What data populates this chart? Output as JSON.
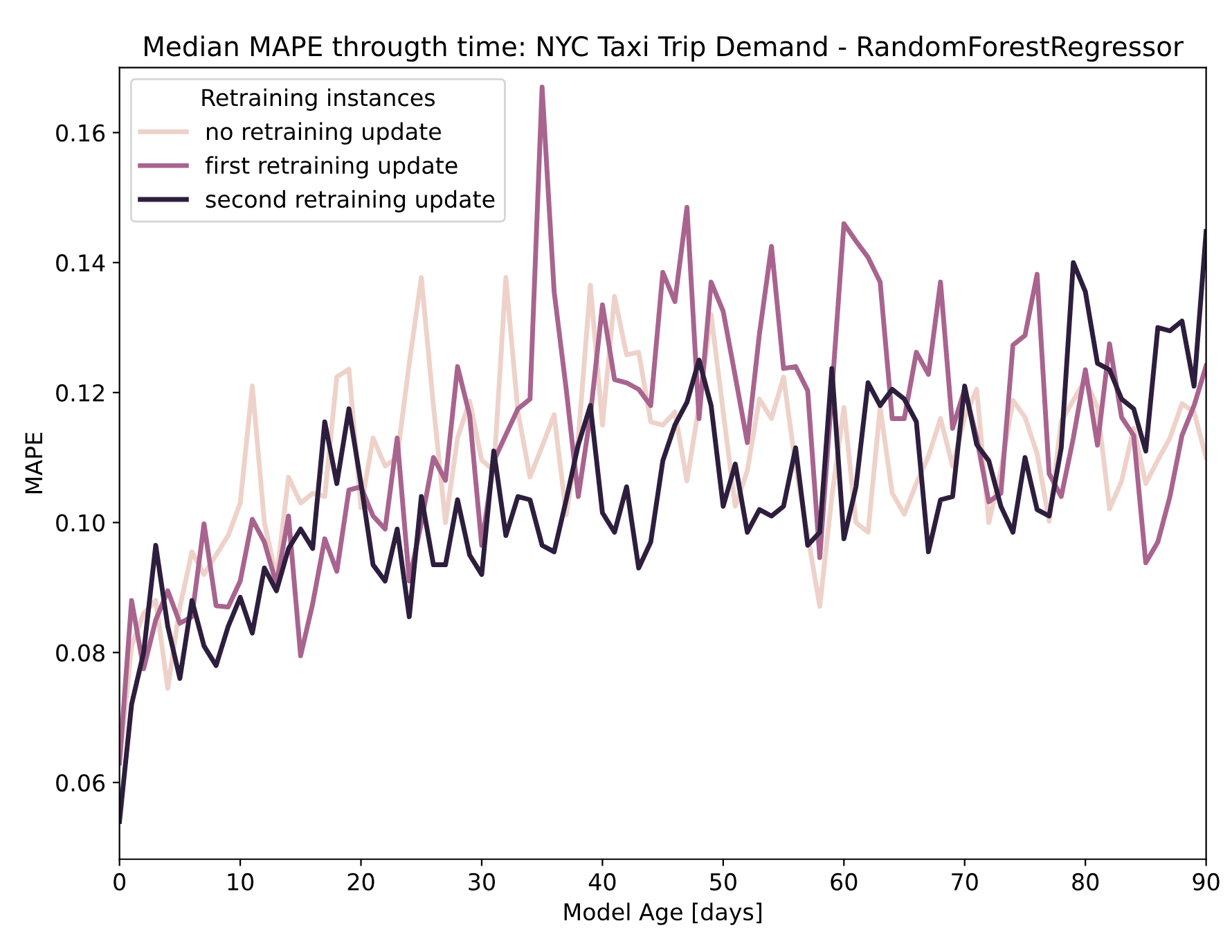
{
  "chart_data": {
    "type": "line",
    "title": "Median MAPE througth time: NYC Taxi Trip Demand - RandomForestRegressor",
    "xlabel": "Model Age [days]",
    "ylabel": "MAPE",
    "legend_title": "Retraining instances",
    "legend": "top left",
    "grid": false,
    "marker": "none",
    "line_style": "solid",
    "x": [
      0,
      1,
      2,
      3,
      4,
      5,
      6,
      7,
      8,
      9,
      10,
      11,
      12,
      13,
      14,
      15,
      16,
      17,
      18,
      19,
      20,
      21,
      22,
      23,
      24,
      25,
      26,
      27,
      28,
      29,
      30,
      31,
      32,
      33,
      34,
      35,
      36,
      37,
      38,
      39,
      40,
      41,
      42,
      43,
      44,
      45,
      46,
      47,
      48,
      49,
      50,
      51,
      52,
      53,
      54,
      55,
      56,
      57,
      58,
      59,
      60,
      61,
      62,
      63,
      64,
      65,
      66,
      67,
      68,
      69,
      70,
      71,
      72,
      73,
      74,
      75,
      76,
      77,
      78,
      79,
      80,
      81,
      82,
      83,
      84,
      85,
      86,
      87,
      88,
      89,
      90
    ],
    "xlim": [
      0,
      90
    ],
    "xticks": [
      0,
      10,
      20,
      30,
      40,
      50,
      60,
      70,
      80,
      90
    ],
    "ylim": [
      0.0482,
      0.17
    ],
    "yticks": [
      0.06,
      0.08,
      {
        "value": 0.1,
        "label": "0.10"
      },
      0.12,
      0.14,
      0.16
    ],
    "series": [
      {
        "name": "no retraining update",
        "color": "#eed2c9",
        "values": [
          0.063,
          0.081,
          0.086,
          0.088,
          0.0745,
          0.087,
          0.0955,
          0.092,
          0.095,
          0.098,
          0.103,
          0.121,
          0.1,
          0.0915,
          0.107,
          0.103,
          0.1045,
          0.104,
          0.1224,
          0.1236,
          0.1023,
          0.113,
          0.1087,
          0.11,
          0.1245,
          0.1377,
          0.118,
          0.1,
          0.113,
          0.1187,
          0.1096,
          0.108,
          0.1377,
          0.117,
          0.107,
          0.1117,
          0.1166,
          0.1012,
          0.113,
          0.1365,
          0.115,
          0.1348,
          0.1258,
          0.1262,
          0.1155,
          0.115,
          0.117,
          0.1064,
          0.118,
          0.132,
          0.117,
          0.1025,
          0.108,
          0.119,
          0.116,
          0.1224,
          0.1087,
          0.098,
          0.0871,
          0.104,
          0.1177,
          0.1,
          0.0985,
          0.1177,
          0.1045,
          0.1013,
          0.106,
          0.1102,
          0.116,
          0.1087,
          0.1162,
          0.1205,
          0.1,
          0.108,
          0.1188,
          0.1162,
          0.1106,
          0.1002,
          0.1156,
          0.1188,
          0.122,
          0.1177,
          0.1021,
          0.1064,
          0.1145,
          0.106,
          0.1096,
          0.113,
          0.1183,
          0.117,
          0.11
        ]
      },
      {
        "name": "first retraining update",
        "color": "#a8648e",
        "values": [
          0.063,
          0.088,
          0.0775,
          0.085,
          0.0895,
          0.0845,
          0.0855,
          0.0998,
          0.0872,
          0.087,
          0.091,
          0.1005,
          0.097,
          0.0905,
          0.101,
          0.0795,
          0.0875,
          0.0975,
          0.0925,
          0.105,
          0.1055,
          0.101,
          0.099,
          0.113,
          0.091,
          0.1,
          0.11,
          0.1065,
          0.124,
          0.1165,
          0.0965,
          0.1095,
          0.1135,
          0.1175,
          0.119,
          0.167,
          0.1355,
          0.1205,
          0.104,
          0.1165,
          0.1335,
          0.122,
          0.1215,
          0.1205,
          0.118,
          0.1385,
          0.134,
          0.1485,
          0.116,
          0.137,
          0.1325,
          0.1225,
          0.1123,
          0.129,
          0.1425,
          0.1237,
          0.124,
          0.1203,
          0.0946,
          0.12,
          0.146,
          0.1433,
          0.1408,
          0.137,
          0.116,
          0.116,
          0.1262,
          0.1228,
          0.137,
          0.1145,
          0.1205,
          0.113,
          0.1032,
          0.1045,
          0.1273,
          0.1288,
          0.1382,
          0.1075,
          0.104,
          0.113,
          0.1235,
          0.1119,
          0.1275,
          0.1162,
          0.1134,
          0.0938,
          0.097,
          0.104,
          0.1134,
          0.118,
          0.1241
        ]
      },
      {
        "name": "second retraining update",
        "color": "#2d1e3e",
        "values": [
          0.054,
          0.072,
          0.08,
          0.0965,
          0.084,
          0.076,
          0.088,
          0.081,
          0.078,
          0.084,
          0.0885,
          0.083,
          0.093,
          0.0895,
          0.096,
          0.099,
          0.096,
          0.1155,
          0.106,
          0.1175,
          0.106,
          0.0935,
          0.091,
          0.099,
          0.0855,
          0.104,
          0.0935,
          0.0935,
          0.1035,
          0.095,
          0.092,
          0.111,
          0.098,
          0.104,
          0.1035,
          0.0965,
          0.0955,
          0.1035,
          0.112,
          0.118,
          0.1015,
          0.0985,
          0.1055,
          0.093,
          0.097,
          0.1095,
          0.115,
          0.1185,
          0.125,
          0.118,
          0.1025,
          0.109,
          0.0985,
          0.102,
          0.101,
          0.1025,
          0.1115,
          0.0965,
          0.0985,
          0.1237,
          0.0975,
          0.1055,
          0.1215,
          0.118,
          0.1205,
          0.119,
          0.1155,
          0.0955,
          0.1035,
          0.104,
          0.121,
          0.112,
          0.1095,
          0.1025,
          0.0985,
          0.11,
          0.102,
          0.101,
          0.1115,
          0.14,
          0.1355,
          0.1245,
          0.1235,
          0.119,
          0.1175,
          0.111,
          0.13,
          0.1295,
          0.131,
          0.121,
          0.1448
        ]
      }
    ]
  }
}
